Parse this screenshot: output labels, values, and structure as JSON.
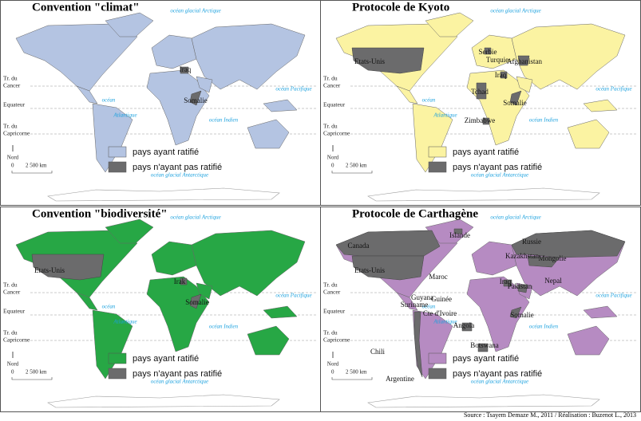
{
  "panels": [
    {
      "title": "Convention \"climat\"",
      "color": "#b4c4e2",
      "legend": [
        "pays ayant ratifié",
        "pays n'ayant pas ratifié"
      ],
      "countries": [
        "Iraq",
        "Somalie"
      ],
      "oceans": {
        "arctic": "océan glacial Arctique",
        "pacific": "océan Pacifique",
        "atlantic": [
          "océan",
          "Atlantique"
        ],
        "indian": "océan Indien",
        "antarctic": "océan glacial Antarctique"
      },
      "tropics": {
        "cancer": [
          "Tr. du",
          "Cancer"
        ],
        "equator": "Equateur",
        "capricorn": [
          "Tr. du",
          "Capricorne"
        ]
      },
      "scale": {
        "north": "Nord",
        "zero": "0",
        "distance": "2 500 km"
      }
    },
    {
      "title": "Protocole de Kyoto",
      "color": "#fbf3a2",
      "legend": [
        "pays ayant ratifié",
        "pays n'ayant pas ratifié"
      ],
      "countries": [
        "Etats-Unis",
        "Serbie",
        "Turquie",
        "Afghanistan",
        "Iraq",
        "Tchad",
        "Somalie",
        "Zimbabwe"
      ],
      "oceans": {
        "arctic": "océan glacial Arctique",
        "pacific": "océan Pacifique",
        "atlantic": [
          "océan",
          "Atlantique"
        ],
        "indian": "océan Indien",
        "antarctic": "océan glacial Antarctique"
      },
      "tropics": {
        "cancer": [
          "Tr. du",
          "Cancer"
        ],
        "equator": "Equateur",
        "capricorn": [
          "Tr. du",
          "Capricorne"
        ]
      },
      "scale": {
        "north": "Nord",
        "zero": "0",
        "distance": "2 500 km"
      }
    },
    {
      "title": "Convention \"biodiversité\"",
      "color": "#27a745",
      "legend": [
        "pays ayant ratifié",
        "pays n'ayant pas ratifié"
      ],
      "countries": [
        "Etats-Unis",
        "Irak",
        "Somalie"
      ],
      "oceans": {
        "arctic": "océan glacial Arctique",
        "pacific": "océan Pacifique",
        "atlantic": [
          "océan",
          "Atlantique"
        ],
        "indian": "océan Indien",
        "antarctic": "océan glacial Antarctique"
      },
      "tropics": {
        "cancer": [
          "Tr. du",
          "Cancer"
        ],
        "equator": "Equateur",
        "capricorn": [
          "Tr. du",
          "Capricorne"
        ]
      },
      "scale": {
        "north": "Nord",
        "zero": "0",
        "distance": "2 500 km"
      }
    },
    {
      "title": "Protocole de Carthagène",
      "color": "#b68bc2",
      "legend": [
        "pays ayant ratifié",
        "pays n'ayant pas ratifié"
      ],
      "countries": [
        "Islande",
        "Russie",
        "Canada",
        "Kazakhstan",
        "Mongolie",
        "Etats-Unis",
        "Maroc",
        "Iraq",
        "Pakistan",
        "Nepal",
        "Guyana",
        "Suriname",
        "Guinée",
        "Cte d'Ivoire",
        "Somalie",
        "Angola",
        "Chili",
        "Botswana",
        "Argentine"
      ],
      "oceans": {
        "arctic": "océan glacial Arctique",
        "pacific": "océan Pacifique",
        "atlantic": [
          "océan",
          "Atlantique"
        ],
        "indian": "océan Indien",
        "antarctic": "océan glacial Antarctique"
      },
      "tropics": {
        "cancer": [
          "Tr. du",
          "Cancer"
        ],
        "equator": "Equateur",
        "capricorn": [
          "Tr. du",
          "Capricorne"
        ]
      },
      "scale": {
        "north": "Nord",
        "zero": "0",
        "distance": "2 500 km"
      }
    }
  ],
  "not_ratified_color": "#6b6b6c",
  "source": "Source : Tsayem Demaze M., 2011 / Réalisation : Buzenot L., 2013"
}
